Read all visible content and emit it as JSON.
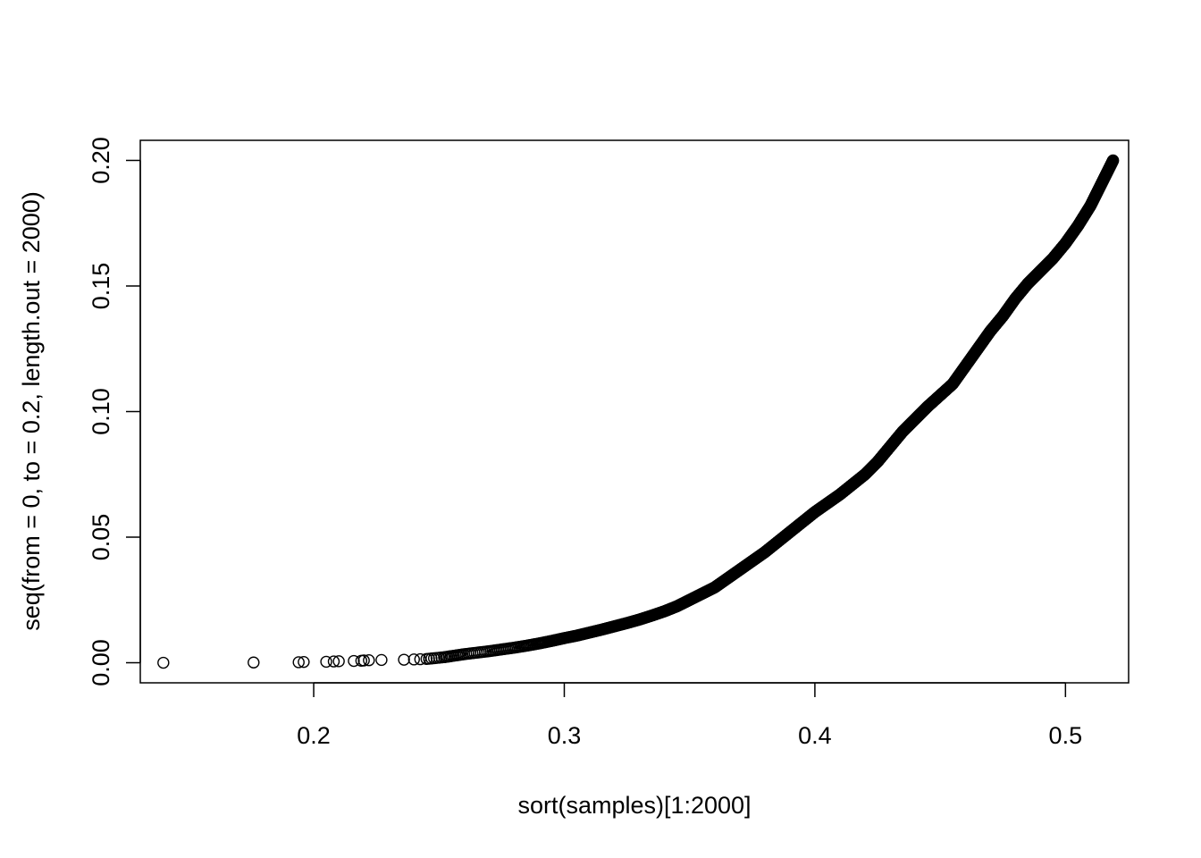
{
  "chart_data": {
    "type": "scatter",
    "title": "",
    "xlabel": "sort(samples)[1:2000]",
    "ylabel": "seq(from = 0, to = 0.2, length.out = 2000)",
    "xlim": [
      0.1308,
      0.5252
    ],
    "ylim": [
      -0.008,
      0.208
    ],
    "xticks": [
      0.2,
      0.3,
      0.4,
      0.5
    ],
    "xtick_labels": [
      "0.2",
      "0.3",
      "0.4",
      "0.5"
    ],
    "yticks": [
      0.0,
      0.05,
      0.1,
      0.15,
      0.2
    ],
    "ytick_labels": [
      "0.00",
      "0.05",
      "0.10",
      "0.15",
      "0.20"
    ],
    "grid": false,
    "legend": "none",
    "marker": "open-circle",
    "marker_color": "#000000",
    "n_points": 2000,
    "series": [
      {
        "x": [
          0.14,
          0.176,
          0.194,
          0.196,
          0.205,
          0.208,
          0.21,
          0.216,
          0.219,
          0.22,
          0.222,
          0.227,
          0.236,
          0.24,
          0.245,
          0.248,
          0.252,
          0.256,
          0.26,
          0.265,
          0.27,
          0.275,
          0.28,
          0.285,
          0.29,
          0.295,
          0.3,
          0.305,
          0.31,
          0.315,
          0.32,
          0.325,
          0.33,
          0.335,
          0.34,
          0.345,
          0.35,
          0.355,
          0.36,
          0.365,
          0.37,
          0.375,
          0.38,
          0.385,
          0.39,
          0.395,
          0.4,
          0.405,
          0.41,
          0.415,
          0.42,
          0.425,
          0.43,
          0.435,
          0.44,
          0.445,
          0.45,
          0.455,
          0.46,
          0.465,
          0.47,
          0.475,
          0.48,
          0.485,
          0.49,
          0.495,
          0.5,
          0.505,
          0.51,
          0.514,
          0.517,
          0.519
        ],
        "y": [
          0.0,
          0.0001,
          0.0002,
          0.0003,
          0.0004,
          0.0005,
          0.0006,
          0.0007,
          0.0008,
          0.0009,
          0.001,
          0.0011,
          0.0012,
          0.0013,
          0.0015,
          0.0018,
          0.0022,
          0.0028,
          0.0034,
          0.004,
          0.0046,
          0.0053,
          0.006,
          0.0068,
          0.0077,
          0.0087,
          0.0098,
          0.0108,
          0.012,
          0.0132,
          0.0145,
          0.0158,
          0.0172,
          0.0188,
          0.0205,
          0.0225,
          0.025,
          0.0275,
          0.03,
          0.0335,
          0.037,
          0.0405,
          0.044,
          0.048,
          0.052,
          0.056,
          0.06,
          0.0635,
          0.067,
          0.071,
          0.075,
          0.08,
          0.086,
          0.092,
          0.097,
          0.102,
          0.1065,
          0.111,
          0.118,
          0.125,
          0.132,
          0.138,
          0.145,
          0.151,
          0.156,
          0.161,
          0.167,
          0.174,
          0.182,
          0.19,
          0.196,
          0.2
        ]
      }
    ]
  }
}
